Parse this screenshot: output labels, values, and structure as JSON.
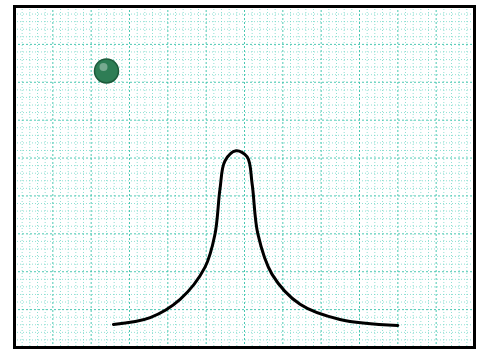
{
  "chart_data": {
    "type": "line",
    "xlim": [
      0,
      12
    ],
    "ylim": [
      0,
      9
    ],
    "xticks": [
      0,
      1,
      2,
      3,
      4,
      5,
      6,
      7,
      8,
      9,
      10,
      11,
      12
    ],
    "yticks": [
      0,
      1,
      2,
      3,
      4,
      5,
      6,
      7,
      8,
      9
    ],
    "grid": true,
    "tick_labels": false,
    "series": [
      {
        "type": "line",
        "color": "#000000",
        "x": [
          2.58,
          3.54,
          4.32,
          4.97,
          5.23,
          5.36,
          5.49,
          5.78,
          6.07,
          6.2,
          6.35,
          6.72,
          7.45,
          8.49,
          10.0
        ],
        "values": [
          0.61,
          0.79,
          1.27,
          2.12,
          2.99,
          4.18,
          4.92,
          5.19,
          5.03,
          4.31,
          2.99,
          1.93,
          1.14,
          0.74,
          0.58
        ]
      },
      {
        "type": "scatter",
        "color": "#2e7d55",
        "marker": "circle",
        "x": [
          2.4
        ],
        "values": [
          7.3
        ]
      }
    ]
  }
}
